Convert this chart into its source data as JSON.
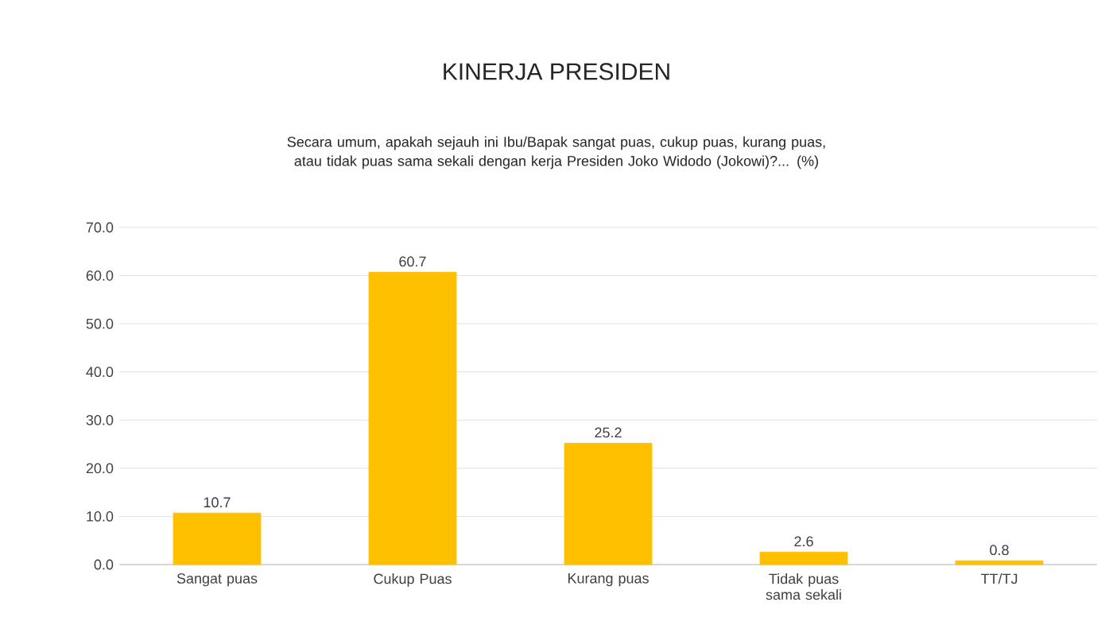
{
  "chart_data": {
    "type": "bar",
    "title": "KINERJA PRESIDEN",
    "subtitle": "Secara umum, apakah sejauh ini Ibu/Bapak sangat puas, cukup puas, kurang puas, atau tidak puas sama sekali dengan kerja Presiden Joko Widodo (Jokowi)?... (%)",
    "categories": [
      "Sangat puas",
      "Cukup Puas",
      "Kurang puas",
      "Tidak puas sama sekali",
      "TT/TJ"
    ],
    "values": [
      10.7,
      60.7,
      25.2,
      2.6,
      0.8
    ],
    "color": "#ffc000",
    "data_labels": true,
    "grid": "y",
    "ylim": [
      0,
      70
    ],
    "yticks": [
      {
        "value": 0,
        "label": "0.0"
      },
      {
        "value": 10,
        "label": "10.0"
      },
      {
        "value": 20,
        "label": "20.0"
      },
      {
        "value": 30,
        "label": "30.0"
      },
      {
        "value": 40,
        "label": "40.0"
      },
      {
        "value": 50,
        "label": "50.0"
      },
      {
        "value": 60,
        "label": "60.0"
      },
      {
        "value": 70,
        "label": "70.0"
      }
    ]
  }
}
